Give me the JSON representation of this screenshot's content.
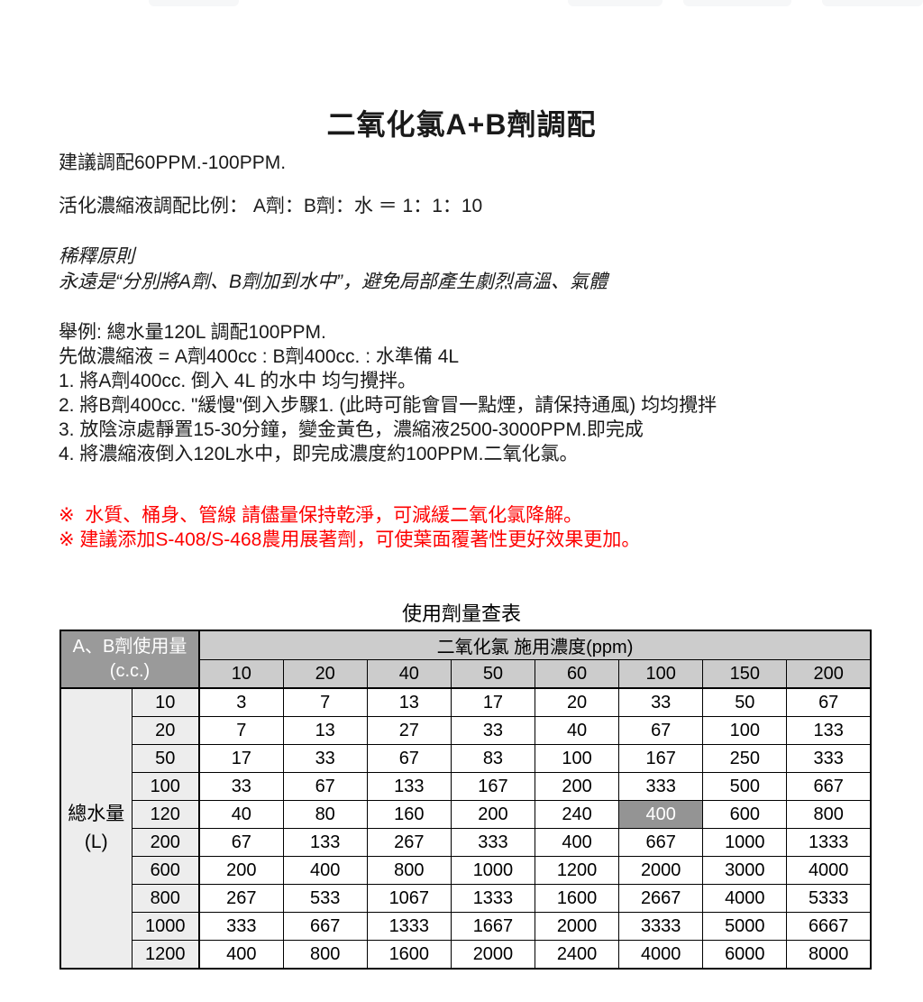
{
  "page": {
    "title": "二氧化氯A+B劑調配"
  },
  "intro": [
    "建議調配60PPM.-100PPM.",
    "活化濃縮液調配比例： A劑：B劑：水 ＝ 1：1：10"
  ],
  "principle": {
    "heading": "稀釋原則",
    "body": "永遠是“分別將A劑、B劑加到水中”，避免局部產生劇烈高溫、氣體"
  },
  "example": {
    "heading": "舉例: 總水量120L 調配100PPM.",
    "concentrate": "先做濃縮液 = A劑400cc : B劑400cc. : 水準備 4L",
    "steps": [
      "1. 將A劑400cc. 倒入 4L 的水中 均勻攪拌。",
      "2. 將B劑400cc. \"緩慢\"倒入步驟1. (此時可能會冒一點煙，請保持通風) 均均攪拌",
      "3. 放陰涼處靜置15-30分鐘，變金黃色，濃縮液2500-3000PPM.即完成",
      "4. 將濃縮液倒入120L水中，即完成濃度約100PPM.二氧化氯。"
    ]
  },
  "notes": [
    "※  水質、桶身、管線 請儘量保持乾淨，可減緩二氧化氯降解。",
    "※ 建議添加S-408/S-468農用展著劑，可使葉面覆著性更好效果更加。"
  ],
  "table": {
    "title": "使用劑量查表",
    "corner_header_line1": "A、B劑使用量",
    "corner_header_line2": "(c.c.)",
    "concentration_header": "二氧化氯 施用濃度(ppm)",
    "concentrations": [
      "10",
      "20",
      "40",
      "50",
      "60",
      "100",
      "150",
      "200"
    ],
    "row_group_label_line1": "總水量",
    "row_group_label_line2": "(L)",
    "rows": [
      {
        "label": "10",
        "values": [
          "3",
          "7",
          "13",
          "17",
          "20",
          "33",
          "50",
          "67"
        ]
      },
      {
        "label": "20",
        "values": [
          "7",
          "13",
          "27",
          "33",
          "40",
          "67",
          "100",
          "133"
        ]
      },
      {
        "label": "50",
        "values": [
          "17",
          "33",
          "67",
          "83",
          "100",
          "167",
          "250",
          "333"
        ]
      },
      {
        "label": "100",
        "values": [
          "33",
          "67",
          "133",
          "167",
          "200",
          "333",
          "500",
          "667"
        ]
      },
      {
        "label": "120",
        "values": [
          "40",
          "80",
          "160",
          "200",
          "240",
          "400",
          "600",
          "800"
        ]
      },
      {
        "label": "200",
        "values": [
          "67",
          "133",
          "267",
          "333",
          "400",
          "667",
          "1000",
          "1333"
        ]
      },
      {
        "label": "600",
        "values": [
          "200",
          "400",
          "800",
          "1000",
          "1200",
          "2000",
          "3000",
          "4000"
        ]
      },
      {
        "label": "800",
        "values": [
          "267",
          "533",
          "1067",
          "1333",
          "1600",
          "2667",
          "4000",
          "5333"
        ]
      },
      {
        "label": "1000",
        "values": [
          "333",
          "667",
          "1333",
          "1667",
          "2000",
          "3333",
          "5000",
          "6667"
        ]
      },
      {
        "label": "1200",
        "values": [
          "400",
          "800",
          "1600",
          "2000",
          "2400",
          "4000",
          "6000",
          "8000"
        ]
      }
    ],
    "highlight": {
      "row_index": 4,
      "col_index": 5
    },
    "colors": {
      "corner_header_bg": "#9a9a9a",
      "concentration_header_bg": "#cccccc",
      "row_label_bg": "#ededed",
      "highlight_bg": "#949494",
      "note_red": "#fe0000"
    }
  }
}
